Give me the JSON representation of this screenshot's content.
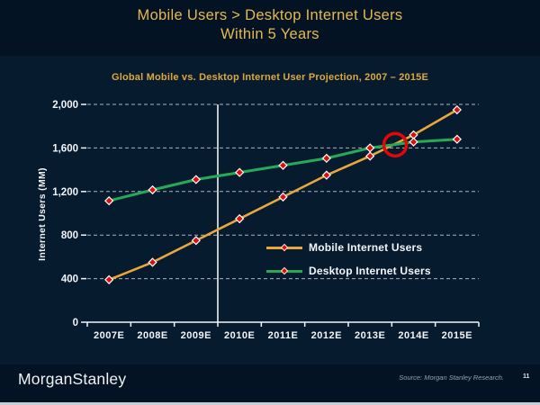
{
  "slide": {
    "title_line1": "Mobile Users > Desktop Internet Users",
    "title_line2": "Within 5 Years",
    "title_color": "#E5B94F"
  },
  "footer": {
    "logo_text": "MorganStanley",
    "source_text": "Source: Morgan Stanley Research.",
    "page_number": "11"
  },
  "chart_data": {
    "type": "line",
    "title": "Global Mobile vs. Desktop Internet User Projection, 2007 – 2015E",
    "ylabel": "Internet Users (MM)",
    "categories": [
      "2007E",
      "2008E",
      "2009E",
      "2010E",
      "2011E",
      "2012E",
      "2013E",
      "2014E",
      "2015E"
    ],
    "series": [
      {
        "name": "Mobile Internet Users",
        "color": "#EAA73C",
        "values": [
          390,
          550,
          750,
          950,
          1150,
          1350,
          1525,
          1720,
          1950
        ]
      },
      {
        "name": "Desktop Internet Users",
        "color": "#28A957",
        "values": [
          1115,
          1215,
          1310,
          1375,
          1440,
          1505,
          1600,
          1655,
          1680
        ]
      }
    ],
    "ylim": [
      0,
      2000
    ],
    "ytick_step": 400,
    "ytick_labels": [
      "0",
      "400",
      "800",
      "1,200",
      "1,600",
      "2,000"
    ],
    "marker": {
      "shape": "diamond",
      "color": "#DC0E0E",
      "outline": "#FFFFFF"
    },
    "grid": {
      "horizontal": true,
      "style": "dashed",
      "color": "#ACB4BC"
    },
    "axis_color": "#F2F6FA",
    "vline_after_category": "2009E",
    "annotation": {
      "shape": "circle",
      "meaning": "mobile-desktop crossover highlight",
      "color": "#E30707",
      "between": [
        "2013E",
        "2014E"
      ],
      "approx_value": 1630
    },
    "legend_position": "inside bottom-right"
  }
}
